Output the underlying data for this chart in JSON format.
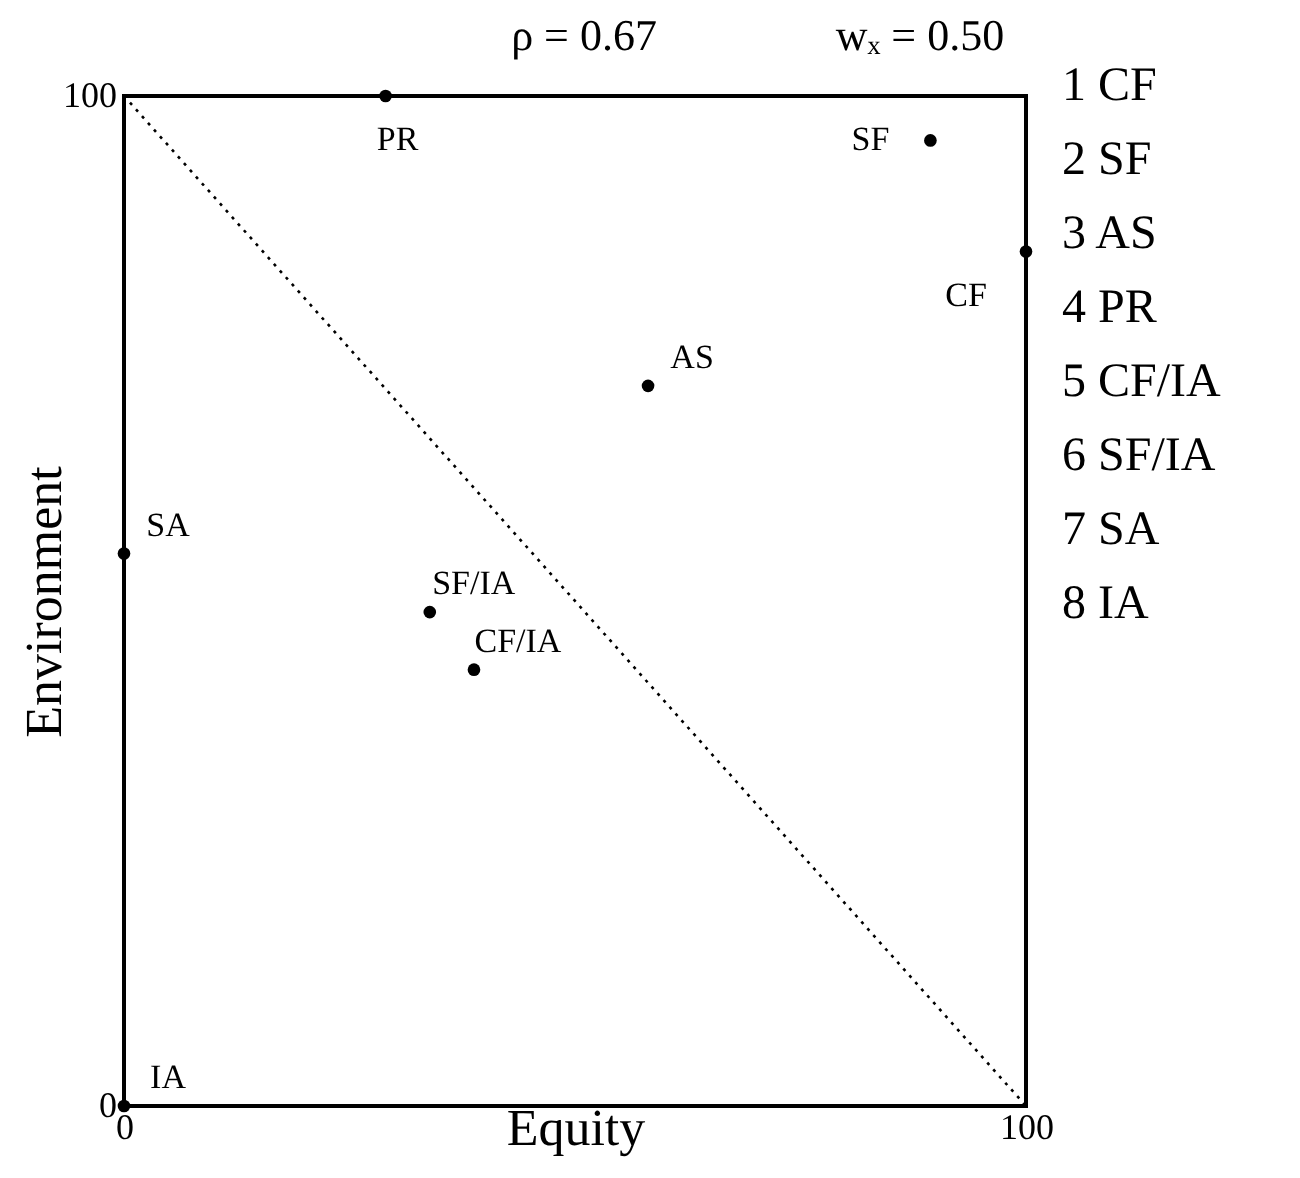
{
  "chart_data": {
    "type": "scatter",
    "xlabel": "Equity",
    "ylabel": "Environment",
    "xlim": [
      0,
      100
    ],
    "ylim": [
      0,
      100
    ],
    "xticks": [
      0,
      100
    ],
    "yticks": [
      0,
      100
    ],
    "marker": "circle",
    "series": [
      {
        "type": "scatter",
        "color": "#000000",
        "x": [
          29,
          89.4,
          100,
          58.1,
          0,
          33.9,
          38.8,
          0
        ],
        "values": [
          100,
          95.6,
          84.6,
          71.3,
          54.7,
          48.9,
          43.2,
          0
        ]
      },
      {
        "type": "line",
        "color": "#000000",
        "line_style": "dotted",
        "marker": "none",
        "x": [
          0,
          100
        ],
        "values": [
          100,
          0
        ]
      }
    ],
    "annotations": [
      "ρ = 0.67",
      "wₓ = 0.50",
      "1 CF",
      "2 SF",
      "3 AS",
      "4 PR",
      "5 CF/IA",
      "6 SF/IA",
      "7 SA",
      "8 IA",
      {
        "text": "PR",
        "x": 29,
        "y": 100
      },
      {
        "text": "SF",
        "x": 89.4,
        "y": 95.6
      },
      {
        "text": "CF",
        "x": 100,
        "y": 84.6
      },
      {
        "text": "AS",
        "x": 58.1,
        "y": 71.3
      },
      {
        "text": "SA",
        "x": 0,
        "y": 54.7
      },
      {
        "text": "SF/IA",
        "x": 33.9,
        "y": 48.9
      },
      {
        "text": "CF/IA",
        "x": 38.8,
        "y": 43.2
      },
      {
        "text": "IA",
        "x": 0,
        "y": 0
      }
    ]
  }
}
